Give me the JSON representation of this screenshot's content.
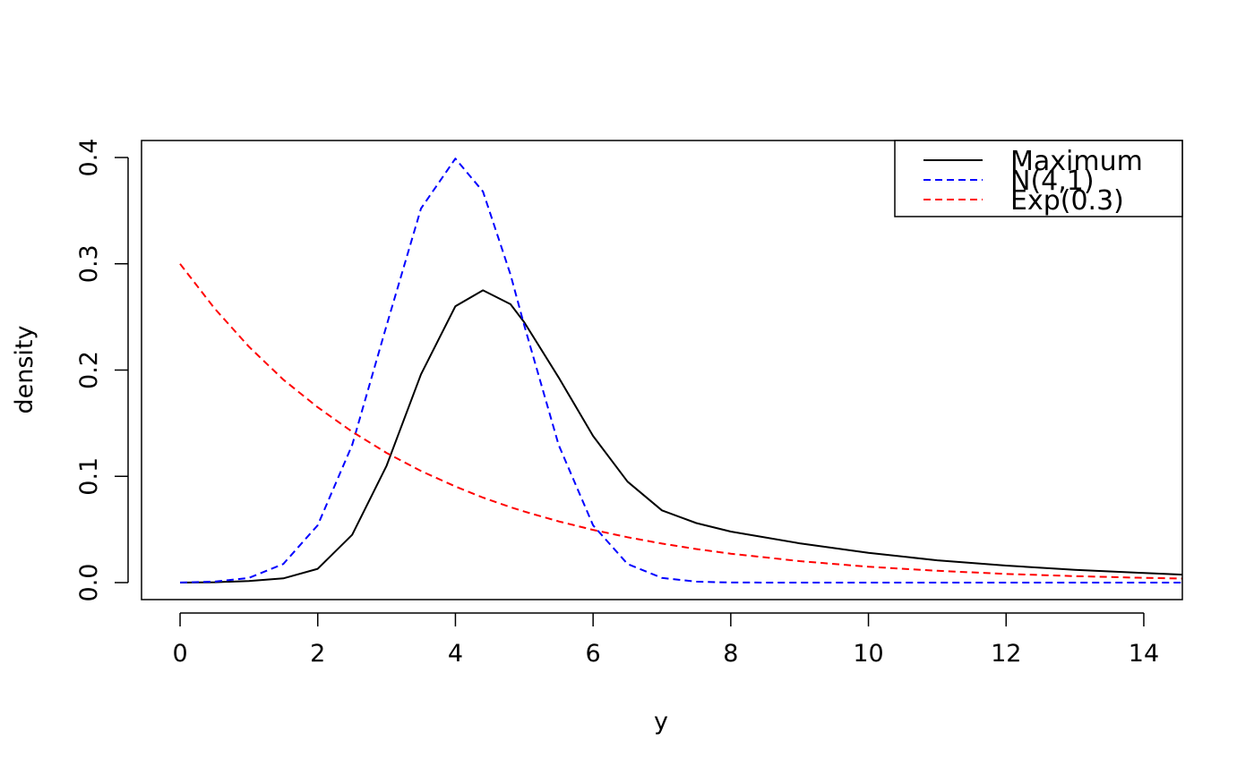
{
  "chart_data": {
    "type": "line",
    "title": "",
    "xlabel": "y",
    "ylabel": "density",
    "xlim": [
      -0.56,
      14.56
    ],
    "ylim": [
      -0.016,
      0.416
    ],
    "x_ticks": [
      0,
      2,
      4,
      6,
      8,
      10,
      12,
      14
    ],
    "x_tick_labels": [
      "0",
      "2",
      "4",
      "6",
      "8",
      "10",
      "12",
      "14"
    ],
    "y_ticks": [
      0.0,
      0.1,
      0.2,
      0.3,
      0.4
    ],
    "y_tick_labels": [
      "0.0",
      "0.1",
      "0.2",
      "0.3",
      "0.4"
    ],
    "grid": false,
    "legend": {
      "position": "top-right"
    },
    "x": [
      0,
      0.5,
      1,
      1.5,
      2,
      2.5,
      3,
      3.5,
      4,
      4.4,
      4.8,
      5,
      5.5,
      6,
      6.5,
      7,
      7.5,
      8,
      9,
      10,
      11,
      12,
      13,
      14,
      14.56
    ],
    "series": [
      {
        "name": "Maximum",
        "color": "#000000",
        "dash": "solid",
        "values": [
          0.0,
          0.0003,
          0.0015,
          0.004,
          0.013,
          0.045,
          0.11,
          0.196,
          0.26,
          0.275,
          0.262,
          0.245,
          0.193,
          0.138,
          0.095,
          0.068,
          0.056,
          0.048,
          0.037,
          0.028,
          0.021,
          0.016,
          0.012,
          0.009,
          0.0075
        ]
      },
      {
        "name": "N(4,1)",
        "color": "#0000ff",
        "dash": "dashed",
        "values": [
          0.0001,
          0.0009,
          0.0044,
          0.0175,
          0.054,
          0.1295,
          0.242,
          0.352,
          0.399,
          0.368,
          0.29,
          0.242,
          0.1295,
          0.054,
          0.0175,
          0.0044,
          0.0009,
          0.0001,
          0.0,
          0.0,
          0.0,
          0.0,
          0.0,
          0.0,
          0.0
        ]
      },
      {
        "name": "Exp(0.3)",
        "color": "#ff0000",
        "dash": "dashed",
        "values": [
          0.3,
          0.258,
          0.222,
          0.191,
          0.165,
          0.142,
          0.122,
          0.105,
          0.0904,
          0.08,
          0.071,
          0.0669,
          0.0576,
          0.0496,
          0.0427,
          0.0367,
          0.0316,
          0.0272,
          0.0202,
          0.0149,
          0.0111,
          0.0082,
          0.0061,
          0.0045,
          0.0038
        ]
      }
    ]
  }
}
